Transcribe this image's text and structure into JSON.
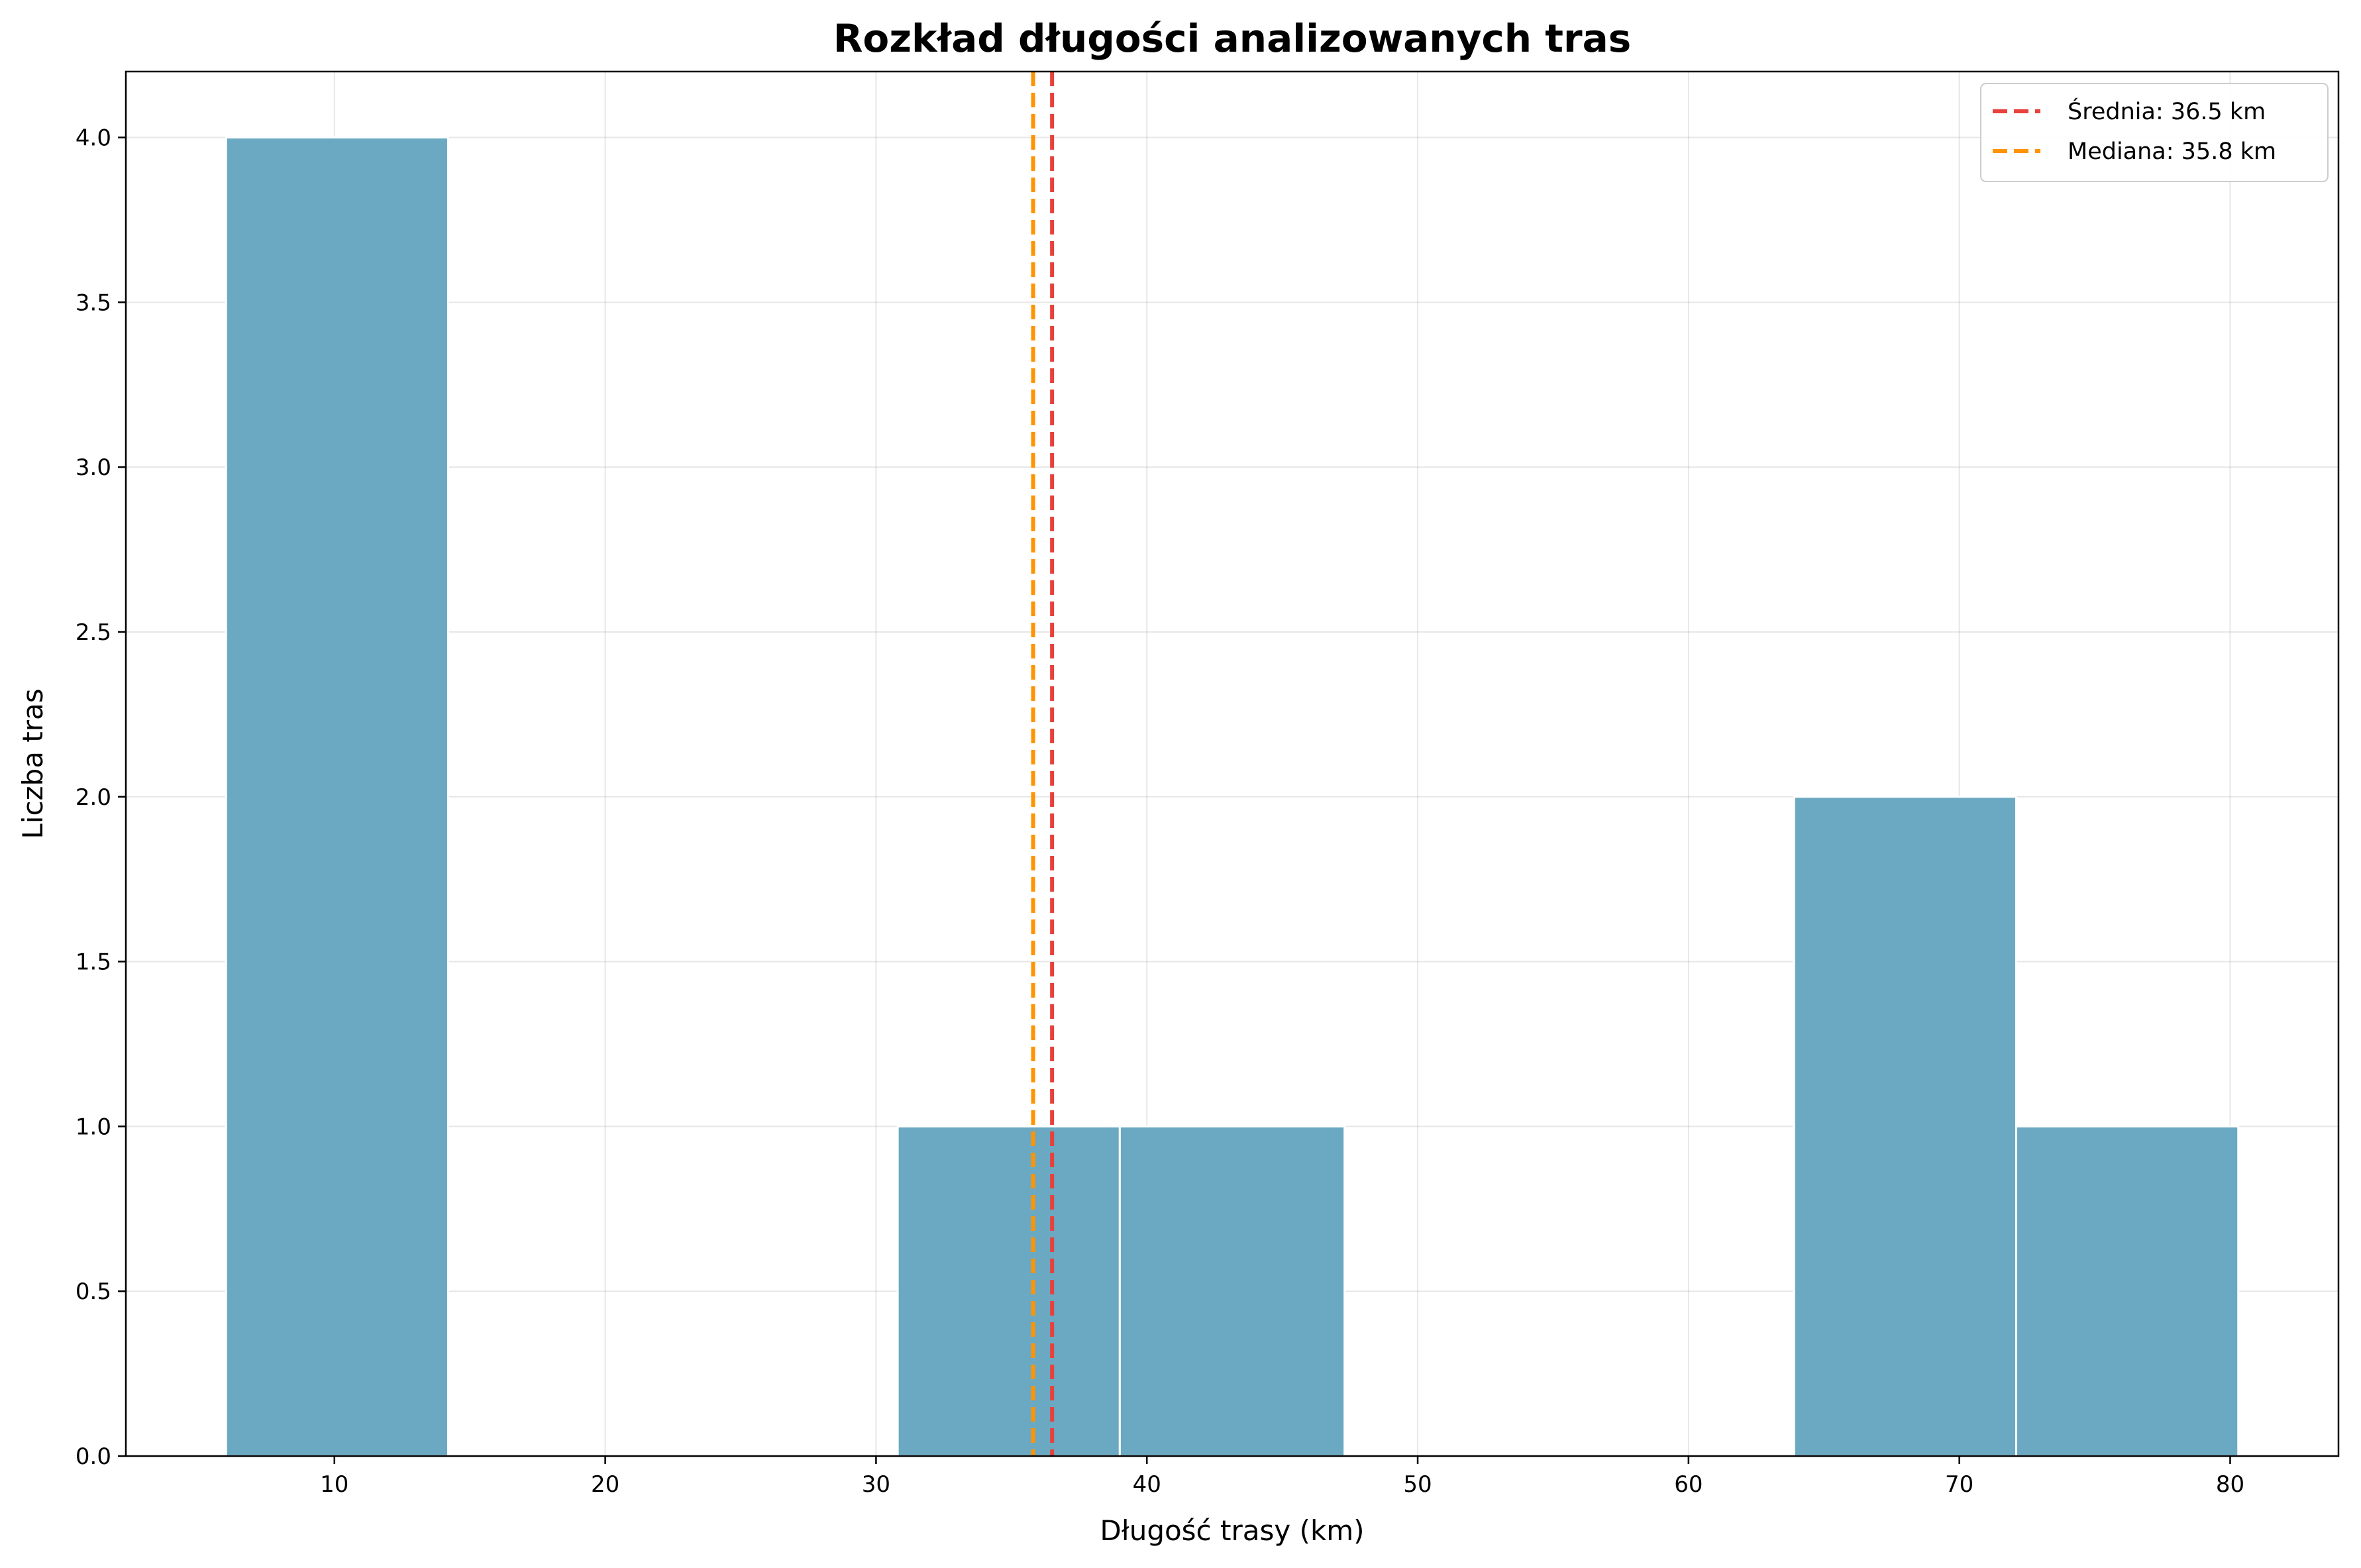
{
  "chart_data": {
    "type": "bar",
    "subtype": "histogram",
    "title": "Rozkład długości analizowanych tras",
    "xlabel": "Długość trasy (km)",
    "ylabel": "Liczba tras",
    "xlim": [
      2.3,
      84.0
    ],
    "ylim": [
      0,
      4.2
    ],
    "xticks": [
      10,
      20,
      30,
      40,
      50,
      60,
      70,
      80
    ],
    "yticks": [
      0.0,
      0.5,
      1.0,
      1.5,
      2.0,
      2.5,
      3.0,
      3.5,
      4.0
    ],
    "ytick_labels": [
      "0.0",
      "0.5",
      "1.0",
      "1.5",
      "2.0",
      "2.5",
      "3.0",
      "3.5",
      "4.0"
    ],
    "grid": true,
    "bar_color": "#6ba9c3",
    "bins": [
      {
        "start": 6.0,
        "end": 14.2,
        "count": 4
      },
      {
        "start": 30.8,
        "end": 39.0,
        "count": 1
      },
      {
        "start": 39.0,
        "end": 47.3,
        "count": 1
      },
      {
        "start": 63.9,
        "end": 72.1,
        "count": 2
      },
      {
        "start": 72.1,
        "end": 80.3,
        "count": 1
      }
    ],
    "vlines": [
      {
        "name": "mean",
        "x": 36.5,
        "color": "#e8413c",
        "label": "Średnia: 36.5 km"
      },
      {
        "name": "median",
        "x": 35.8,
        "color": "#ff9400",
        "label": "Mediana: 35.8 km"
      }
    ],
    "legend_position": "top-right"
  }
}
